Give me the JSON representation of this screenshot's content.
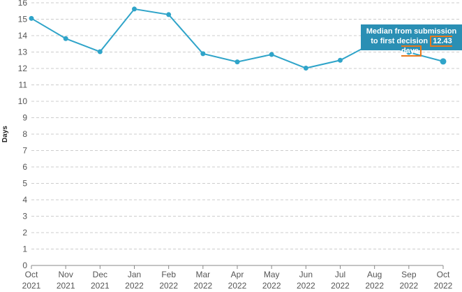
{
  "chart_data": {
    "type": "line",
    "ylabel": "Days",
    "xlabel": "",
    "ylim": [
      0,
      16
    ],
    "yticks": [
      0,
      1,
      2,
      3,
      4,
      5,
      6,
      7,
      8,
      9,
      10,
      11,
      12,
      13,
      14,
      15,
      16
    ],
    "grid": true,
    "categories": [
      [
        "Oct",
        "2021"
      ],
      [
        "Nov",
        "2021"
      ],
      [
        "Dec",
        "2021"
      ],
      [
        "Jan",
        "2022"
      ],
      [
        "Feb",
        "2022"
      ],
      [
        "Mar",
        "2022"
      ],
      [
        "Apr",
        "2022"
      ],
      [
        "May",
        "2022"
      ],
      [
        "Jun",
        "2022"
      ],
      [
        "Jul",
        "2022"
      ],
      [
        "Aug",
        "2022"
      ],
      [
        "Sep",
        "2022"
      ],
      [
        "Oct",
        "2022"
      ]
    ],
    "series": [
      {
        "color": "#2fa4c9",
        "values": [
          15.05,
          13.82,
          13.02,
          15.62,
          15.28,
          12.9,
          12.4,
          12.85,
          12.02,
          12.5,
          13.6,
          12.98,
          12.43
        ]
      }
    ],
    "tooltip": {
      "line1": "Median from submission",
      "line2_prefix": "to first decision",
      "value": "12.43 days",
      "index": 12
    }
  }
}
